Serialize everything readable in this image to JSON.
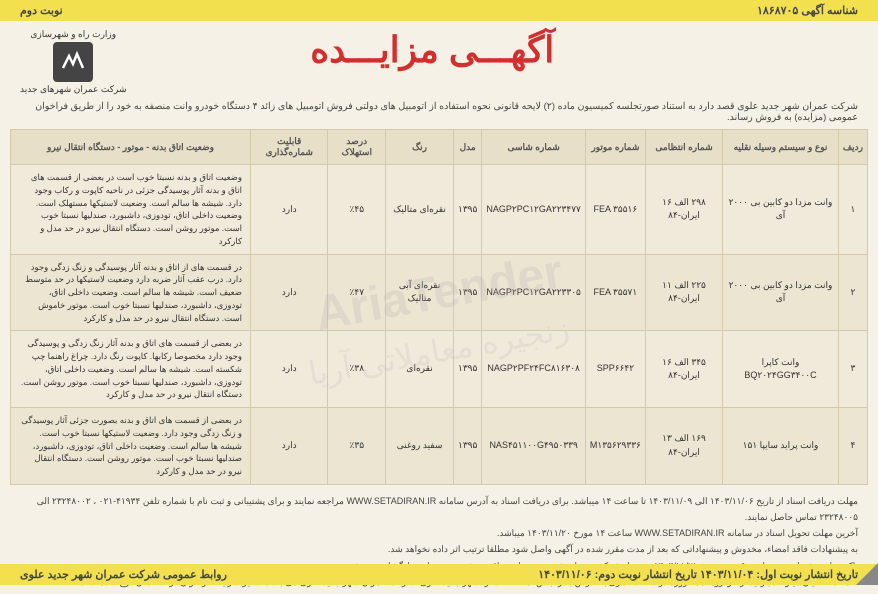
{
  "header": {
    "id_label": "شناسه آگهی ۱۸۶۸۷۰۵",
    "turn": "نوبت دوم"
  },
  "logo": {
    "ministry": "وزارت راه و شهرسازی",
    "company": "شرکت عمران شهرهای جدید"
  },
  "title": "آگهـــی مزایـــده",
  "intro": "شرکت عمران شهر جدید علوی قصد دارد به استناد صورتجلسه کمیسیون ماده (۲) لایحه قانونی نحوه استفاده از اتومبیل های دولتی فروش اتومبیل های زائد ۴ دستگاه خودرو وانت منصفه به خود را از طریق فراخوان عمومی (مزایده) به فروش رساند.",
  "columns": {
    "c0": "ردیف",
    "c1": "نوع و سیستم وسیله نقلیه",
    "c2": "شماره انتظامی",
    "c3": "شماره موتور",
    "c4": "شماره شاسی",
    "c5": "مدل",
    "c6": "رنگ",
    "c7": "درصد استهلاک",
    "c8": "قابلیت شماره‌گذاری",
    "c9": "وضعیت اتاق بدنه - موتور - دستگاه انتقال نیرو"
  },
  "rows": [
    {
      "num": "۱",
      "type": "وانت مزدا دو کابین بی ۲۰۰۰ آی",
      "plate": "۲۹۸ الف ۱۶ ایران-۸۴",
      "engine": "FEA ۳۵۵۱۶",
      "chassis": "NAGP۲PC۱۲GA۲۲۳۴۷۷",
      "model": "۱۳۹۵",
      "color": "نقره‌ای متالیک",
      "depr": "٪۴۵",
      "reg": "دارد",
      "desc": "وضعیت اتاق و بدنه نسبتا خوب است در بعضی از قسمت های اتاق و بدنه آثار پوسیدگی جزئی در ناحیه کاپوت و رکاب وجود دارد. شیشه ها سالم است. وضعیت لاستیکها مستهلک است. وضعیت داخلی اتاق، تودوزی، داشبورد، صندلیها نسبتا خوب است. موتور روشن است. دستگاه انتقال نیرو در حد مدل و کارکرد"
    },
    {
      "num": "۲",
      "type": "وانت مزدا دو کابین بی ۲۰۰۰ آی",
      "plate": "۲۲۵ الف ۱۱ ایران-۸۴",
      "engine": "FEA ۳۵۵۷۱",
      "chassis": "NAGP۲PC۱۲GA۲۲۳۳۰۵",
      "model": "۱۳۹۵",
      "color": "نقره‌ای آبی متالیک",
      "depr": "٪۴۷",
      "reg": "دارد",
      "desc": "در قسمت های از اتاق و بدنه آثار پوسیدگی و زنگ زدگی وجود دارد. درب عقب آثار ضربه دارد وضعیت لاستیکها در حد متوسط ضعیف است. شیشه ها سالم است. وضعیت داخلی اتاق، تودوزی، داشبورد، صندلیها نسبتا خوب است. موتور خاموش است. دستگاه انتقال نیرو در حد مدل و کارکرد"
    },
    {
      "num": "۳",
      "type": "وانت کاپرا BQ۲۰۲۴GG۳۴۰۰C",
      "plate": "۳۴۵ الف ۱۶ ایران-۸۴",
      "engine": "SPP۶۶۴۲",
      "chassis": "NAGP۲PF۲۴FC۸۱۶۳۰۸",
      "model": "۱۳۹۵",
      "color": "نقره‌ای",
      "depr": "٪۳۸",
      "reg": "دارد",
      "desc": "در بعضی از قسمت های اتاق و بدنه آثار زنگ زدگی و پوسیدگی وجود دارد مخصوصا رکابها. کاپوت رنگ دارد. چراغ راهنما چپ شکسته است. شیشه ها سالم است. وضعیت داخلی اتاق، تودوزی، داشبورد، صندلیها نسبتا خوب است. موتور روشن است. دستگاه انتقال نیرو در حد مدل و کارکرد"
    },
    {
      "num": "۴",
      "type": "وانت پراید سایپا ۱۵۱",
      "plate": "۱۶۹ الف ۱۳ ایران-۸۴",
      "engine": "M۱۳۵۶۲۹۳۳۶",
      "chassis": "NAS۴۵۱۱۰۰G۴۹۵۰۳۳۹",
      "model": "۱۳۹۵",
      "color": "سفید روغنی",
      "depr": "٪۳۵",
      "reg": "دارد",
      "desc": "در بعضی از قسمت های اتاق و بدنه بصورت جزئی آثار پوسیدگی و زنگ زدگی وجود دارد. وضعیت لاستیکها نسبتا خوب است. شیشه ها سالم است. وضعیت داخلی اتاق، تودوزی، داشبورد، صندلیها نسبتا خوب است. موتور روشن است. دستگاه انتقال نیرو در حد مدل و کارکرد"
    }
  ],
  "notes": {
    "n1": "مهلت دریافت اسناد از تاریخ ۱۴۰۳/۱۱/۰۶ الی ۱۴۰۳/۱۱/۰۹ تا ساعت ۱۴ میباشد. برای دریافت اسناد به آدرس سامانه WWW.SETADIRAN.IR مراجعه نمایند و برای پشتیبانی و ثبت نام با شماره تلفن ۴۱۹۳۴-۰۲۱ ، ۲۳۲۴۸۰۰۲ الی ۲۳۲۴۸۰۰۵ تماس حاصل نمایند.",
    "n2": "آخرین مهلت تحویل اسناد در سامانه WWW.SETADIRAN.IR ساعت ۱۴ مورخ ۱۴۰۳/۱۱/۲۰ میباشد.",
    "n3": "به پیشنهادات فاقد امضاء، مخدوش و پیشنهاداتی که بعد از مدت مقرر شده در آگهی واصل شود مطلقا ترتیب اثر داده نخواهد شد.",
    "n4": "پاکت های پیشنهادی در ساعت ۹ صبح مورخ ۱۴۰۳/۱۱/۲۱ در محل شرکت عمران شهر جدید علوی واقع در شهر جدید علوی بازگشایی می شود.",
    "n5": "ضمنا متقاضیان میتوانند بازدید از خودروها همه روزه در ساعت اداری به آدرس بندرعباس، منطقه کشار، شهر جدید علوی، شرکت عمران شهر جدید علوی می باشد. سایر شرایط فراخوان در اسناد آن درج شده است."
  },
  "footer": {
    "date": "تاریخ انتشار نوبت اول: ۱۴۰۳/۱۱/۰۴      تاریخ انتشار نوبت دوم: ۱۴۰۳/۱۱/۰۶",
    "org": "روابط عمومی شرکت عمران شهر جدید علوی"
  },
  "watermark": "AriaTender",
  "watermark2": "زنجیره معاملاتی آریا"
}
